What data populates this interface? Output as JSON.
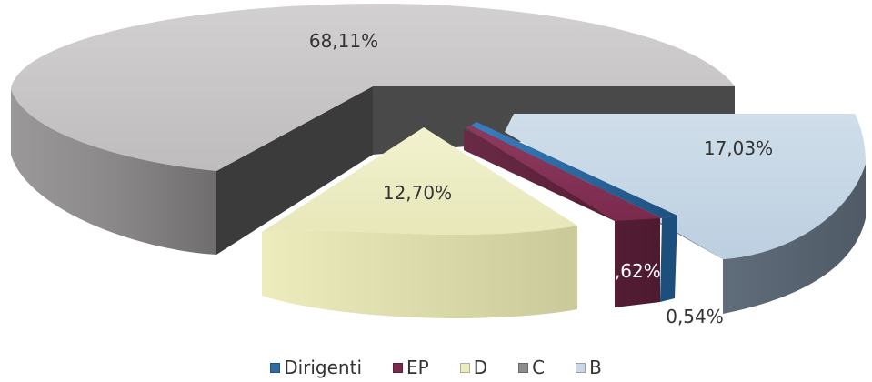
{
  "chart_data": {
    "type": "pie",
    "style": "3d-exploded",
    "slices": [
      {
        "name": "Dirigenti",
        "value": 0.54,
        "label": "0,54%",
        "color": "#2e6da4"
      },
      {
        "name": "EP",
        "value": 1.62,
        "label": "1,62%",
        "color": "#7a2a4d"
      },
      {
        "name": "D",
        "value": 12.7,
        "label": "12,70%",
        "color": "#ededc2"
      },
      {
        "name": "C",
        "value": 68.11,
        "label": "68,11%",
        "color": "#c5c3c4"
      },
      {
        "name": "B",
        "value": 17.03,
        "label": "17,03%",
        "color": "#c8d8e6"
      }
    ],
    "legend_position": "bottom",
    "title": ""
  }
}
